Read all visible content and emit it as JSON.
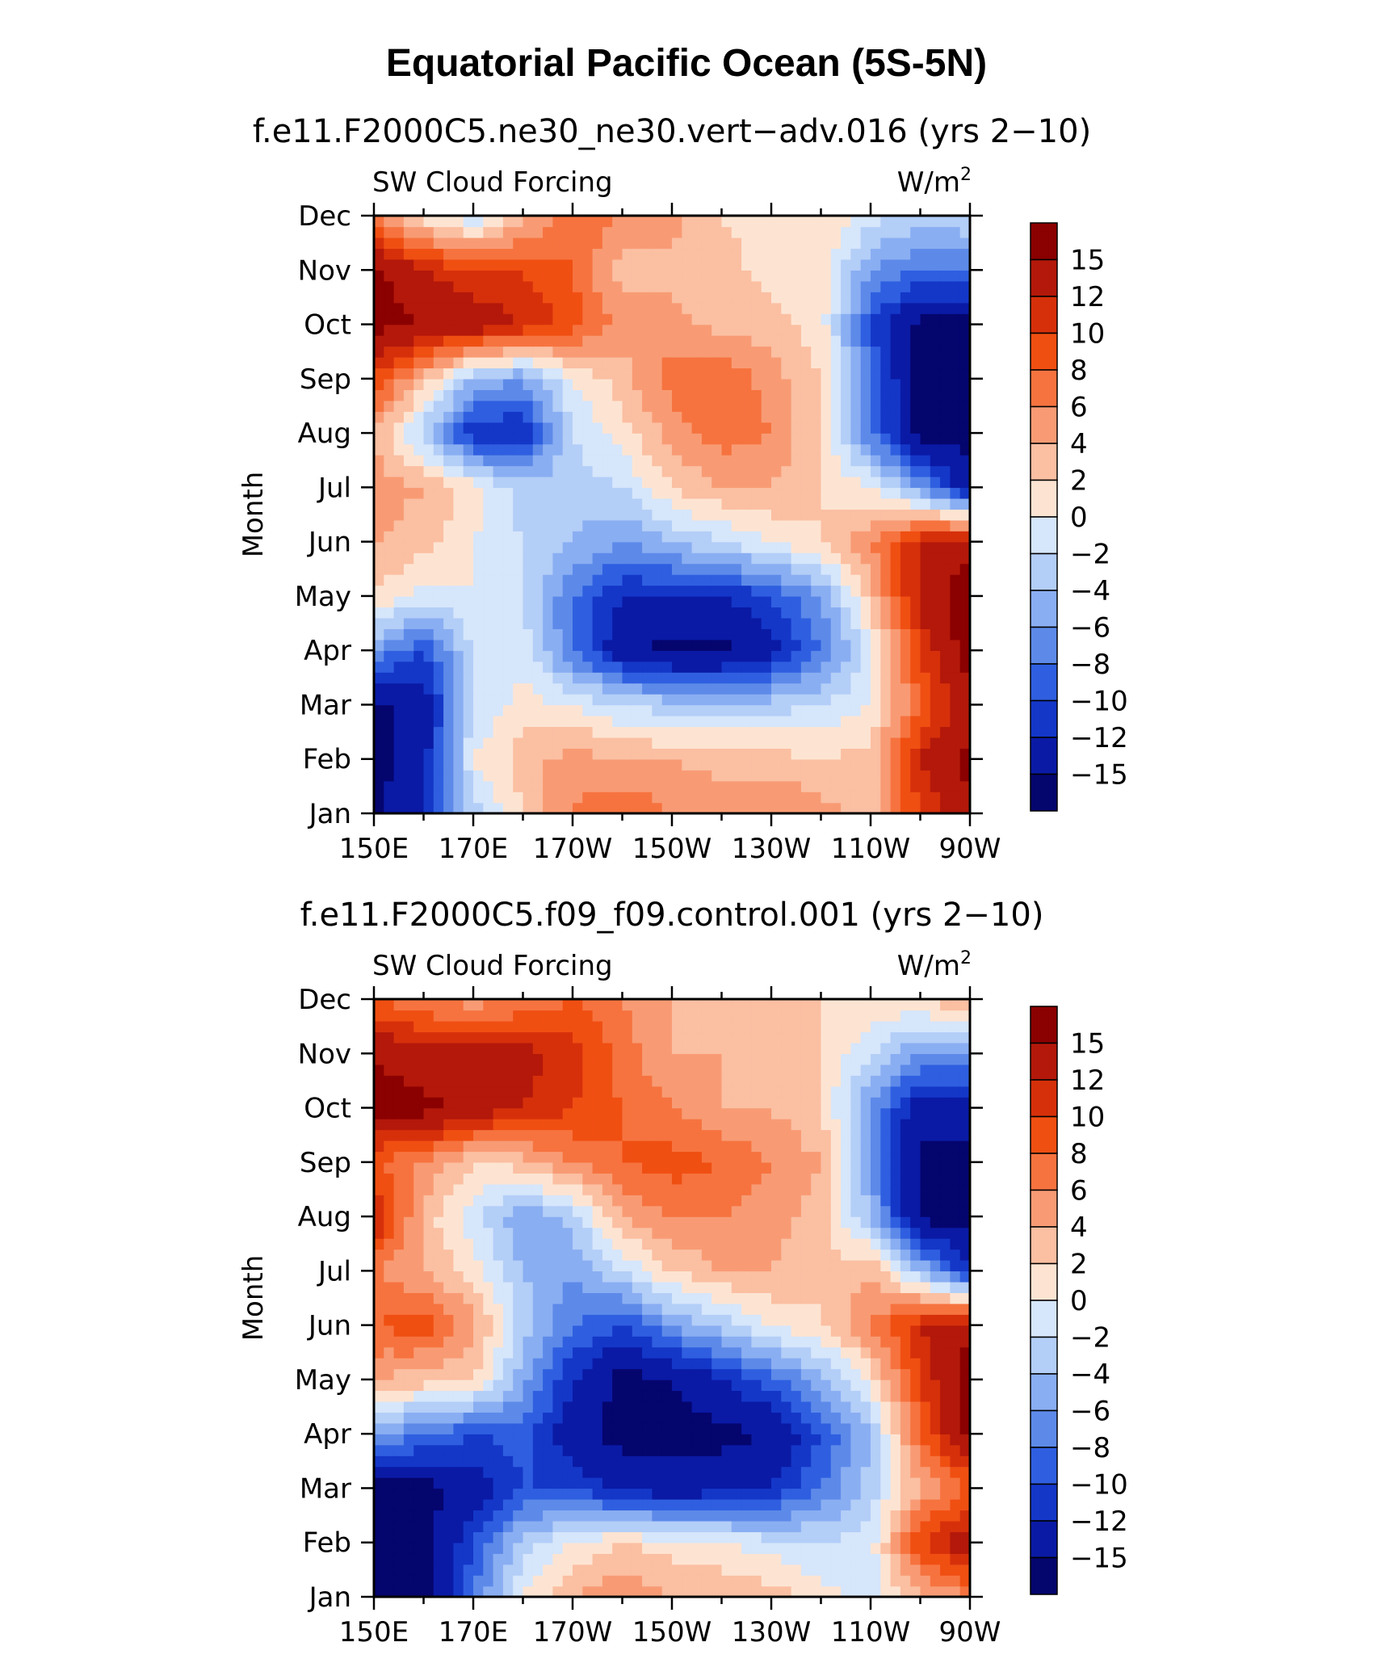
{
  "figure": {
    "title": "Equatorial Pacific Ocean (5S-5N)"
  },
  "colorbar": {
    "levels": [
      "15",
      "12",
      "10",
      "8",
      "6",
      "4",
      "2",
      "0",
      "−2",
      "−4",
      "−6",
      "−8",
      "−10",
      "−12",
      "−15"
    ],
    "colors": [
      "#8b0000",
      "#b3180a",
      "#d6300b",
      "#f04f12",
      "#f6733f",
      "#f89b74",
      "#fbbfa2",
      "#fde4d2",
      "#d6e6fb",
      "#b3cef7",
      "#8aaef2",
      "#5d8ae9",
      "#2f5fe0",
      "#1437c8",
      "#0a1aa5",
      "#05056e"
    ]
  },
  "chart_data": [
    {
      "type": "heatmap",
      "subtitle": "f.e11.F2000C5.ne30_ne30.vert−adv.016 (yrs 2−10)",
      "left_label": "SW Cloud Forcing",
      "right_label_base": "W/m",
      "right_label_sup": "2",
      "ylabel": "Month",
      "x_ticks": [
        "150E",
        "170E",
        "170W",
        "150W",
        "130W",
        "110W",
        "90W"
      ],
      "x_lon": [
        150,
        170,
        190,
        210,
        230,
        250,
        270
      ],
      "y_ticks": [
        "Jan",
        "Feb",
        "Mar",
        "Apr",
        "May",
        "Jun",
        "Jul",
        "Aug",
        "Sep",
        "Oct",
        "Nov",
        "Dec"
      ],
      "grid_lon": [
        150,
        160,
        170,
        180,
        190,
        200,
        210,
        220,
        230,
        240,
        250,
        260,
        270
      ],
      "values": [
        [
          -16,
          -12,
          -3,
          2,
          6,
          8,
          6,
          6,
          6,
          5,
          3,
          10,
          14
        ],
        [
          -16,
          -13,
          0,
          3,
          5,
          4,
          4,
          3,
          3,
          2,
          3,
          12,
          16
        ],
        [
          -16,
          -14,
          -2,
          1,
          0,
          -2,
          -3,
          -3,
          -3,
          -2,
          0,
          8,
          14
        ],
        [
          -6,
          -10,
          -2,
          -1,
          -8,
          -14,
          -16,
          -16,
          -13,
          -8,
          -1,
          10,
          17
        ],
        [
          2,
          -1,
          0,
          -2,
          -8,
          -12,
          -12,
          -12,
          -10,
          -6,
          3,
          13,
          17
        ],
        [
          4,
          3,
          0,
          -2,
          -4,
          -6,
          -4,
          -2,
          0,
          2,
          6,
          12,
          14
        ],
        [
          5,
          4,
          1,
          -3,
          -3,
          -2,
          2,
          4,
          4,
          2,
          0,
          -6,
          -14
        ],
        [
          4,
          -3,
          -12,
          -12,
          -2,
          1,
          5,
          7,
          6,
          2,
          -8,
          -16,
          -16
        ],
        [
          10,
          3,
          -4,
          -6,
          0,
          3,
          7,
          8,
          5,
          2,
          -8,
          -16,
          -16
        ],
        [
          16,
          15,
          14,
          12,
          9,
          5,
          5,
          3,
          3,
          1,
          -10,
          -16,
          -16
        ],
        [
          16,
          12,
          10,
          10,
          8,
          3,
          3,
          3,
          1,
          1,
          -6,
          -8,
          -8
        ],
        [
          6,
          1,
          -2,
          3,
          8,
          6,
          5,
          2,
          1,
          2,
          -1,
          -3,
          -2
        ]
      ]
    },
    {
      "type": "heatmap",
      "subtitle": "f.e11.F2000C5.f09_f09.control.001 (yrs 2−10)",
      "left_label": "SW Cloud Forcing",
      "right_label_base": "W/m",
      "right_label_sup": "2",
      "ylabel": "Month",
      "x_ticks": [
        "150E",
        "170E",
        "170W",
        "150W",
        "130W",
        "110W",
        "90W"
      ],
      "x_lon": [
        150,
        170,
        190,
        210,
        230,
        250,
        270
      ],
      "y_ticks": [
        "Jan",
        "Feb",
        "Mar",
        "Apr",
        "May",
        "Jun",
        "Jul",
        "Aug",
        "Sep",
        "Oct",
        "Nov",
        "Dec"
      ],
      "grid_lon": [
        150,
        160,
        170,
        180,
        190,
        200,
        210,
        220,
        230,
        240,
        250,
        260,
        270
      ],
      "values": [
        [
          -16,
          -16,
          -8,
          0,
          4,
          6,
          4,
          4,
          3,
          1,
          -1,
          3,
          6
        ],
        [
          -16,
          -16,
          -10,
          -3,
          0,
          2,
          1,
          0,
          -1,
          -2,
          -1,
          10,
          14
        ],
        [
          -16,
          -16,
          -14,
          -10,
          -10,
          -13,
          -14,
          -13,
          -12,
          -8,
          -3,
          4,
          8
        ],
        [
          -6,
          -8,
          -10,
          -9,
          -14,
          -16,
          -16,
          -16,
          -15,
          -10,
          -4,
          8,
          16
        ],
        [
          4,
          3,
          2,
          -5,
          -12,
          -16,
          -15,
          -12,
          -9,
          -5,
          1,
          10,
          17
        ],
        [
          8,
          9,
          5,
          -3,
          -8,
          -10,
          -6,
          -3,
          0,
          2,
          6,
          12,
          14
        ],
        [
          6,
          4,
          1,
          -4,
          -6,
          -2,
          2,
          4,
          4,
          2,
          4,
          -4,
          -12
        ],
        [
          13,
          3,
          -1,
          -6,
          -3,
          4,
          6,
          6,
          5,
          3,
          -4,
          -16,
          -16
        ],
        [
          8,
          6,
          2,
          3,
          6,
          8,
          9,
          8,
          6,
          4,
          -6,
          -16,
          -16
        ],
        [
          16,
          16,
          14,
          12,
          10,
          8,
          6,
          4,
          4,
          2,
          -6,
          -14,
          -14
        ],
        [
          15,
          13,
          14,
          13,
          11,
          7,
          4,
          4,
          3,
          2,
          -2,
          -6,
          -6
        ],
        [
          8,
          6,
          5,
          6,
          8,
          6,
          4,
          2,
          2,
          2,
          2,
          2,
          4
        ]
      ]
    }
  ]
}
